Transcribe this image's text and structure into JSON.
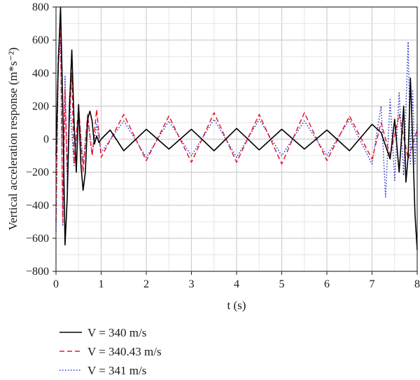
{
  "chart_data": {
    "type": "line",
    "title": "",
    "xlabel": "t (s)",
    "ylabel": "Vertical acceleration response (m*s⁻²)",
    "xlim": [
      0,
      8
    ],
    "ylim": [
      -800,
      800
    ],
    "grid": true,
    "legend_position": "bottom-left",
    "x_ticks": [
      "0",
      "1",
      "2",
      "3",
      "4",
      "5",
      "6",
      "7",
      "8"
    ],
    "y_ticks": [
      "−800",
      "−600",
      "−400",
      "−200",
      "0",
      "200",
      "400",
      "600",
      "800"
    ],
    "series": [
      {
        "name": "V = 340 m/s",
        "color": "#000000",
        "line_style": "solid",
        "x": [
          0,
          0.05,
          0.1,
          0.15,
          0.2,
          0.25,
          0.3,
          0.35,
          0.4,
          0.45,
          0.5,
          0.55,
          0.6,
          0.65,
          0.7,
          0.75,
          0.8,
          0.85,
          0.9,
          0.95,
          1.0,
          1.2,
          1.5,
          2.0,
          2.5,
          3.0,
          3.5,
          4.0,
          4.5,
          5.0,
          5.5,
          6.0,
          6.5,
          7.0,
          7.2,
          7.4,
          7.5,
          7.6,
          7.7,
          7.75,
          7.8,
          7.85,
          7.9,
          7.95,
          8.0
        ],
        "y": [
          -100,
          450,
          800,
          200,
          -640,
          -350,
          200,
          540,
          100,
          -200,
          210,
          -150,
          -310,
          -200,
          120,
          170,
          110,
          -30,
          20,
          -20,
          0,
          55,
          -70,
          60,
          -60,
          60,
          -70,
          65,
          -65,
          60,
          -60,
          55,
          -70,
          90,
          40,
          -120,
          120,
          -200,
          200,
          -260,
          -100,
          370,
          0,
          -450,
          -670
        ]
      },
      {
        "name": "V = 340.43 m/s",
        "color": "#e8192c",
        "line_style": "dashed",
        "x": [
          0,
          0.05,
          0.1,
          0.15,
          0.2,
          0.25,
          0.3,
          0.35,
          0.4,
          0.5,
          0.6,
          0.7,
          0.8,
          0.9,
          1.0,
          1.5,
          2.0,
          2.5,
          3.0,
          3.5,
          4.0,
          4.5,
          5.0,
          5.5,
          6.0,
          6.5,
          7.0,
          7.2,
          7.4,
          7.6,
          7.8,
          8.0
        ],
        "y": [
          -500,
          500,
          700,
          -500,
          300,
          -200,
          150,
          400,
          -150,
          200,
          -200,
          150,
          -100,
          180,
          -110,
          150,
          -130,
          140,
          -140,
          160,
          -140,
          150,
          -150,
          160,
          -130,
          140,
          -120,
          100,
          -100,
          150,
          -120,
          60
        ]
      },
      {
        "name": "V = 341 m/s",
        "color": "#2a34c8",
        "line_style": "dotted",
        "x": [
          0,
          0.05,
          0.1,
          0.15,
          0.2,
          0.25,
          0.3,
          0.4,
          0.5,
          0.6,
          0.7,
          0.8,
          0.9,
          1.0,
          1.5,
          2.0,
          2.5,
          3.0,
          3.5,
          4.0,
          4.5,
          5.0,
          5.5,
          6.0,
          6.5,
          7.0,
          7.2,
          7.3,
          7.4,
          7.5,
          7.6,
          7.7,
          7.8,
          7.85,
          7.9,
          7.95,
          8.0
        ],
        "y": [
          -560,
          440,
          600,
          -520,
          380,
          -300,
          260,
          -160,
          180,
          -150,
          130,
          -90,
          90,
          -80,
          110,
          -110,
          110,
          -100,
          120,
          -110,
          120,
          -100,
          110,
          -100,
          120,
          -150,
          200,
          -350,
          240,
          -250,
          280,
          -220,
          590,
          -150,
          300,
          -150,
          100
        ]
      }
    ]
  }
}
